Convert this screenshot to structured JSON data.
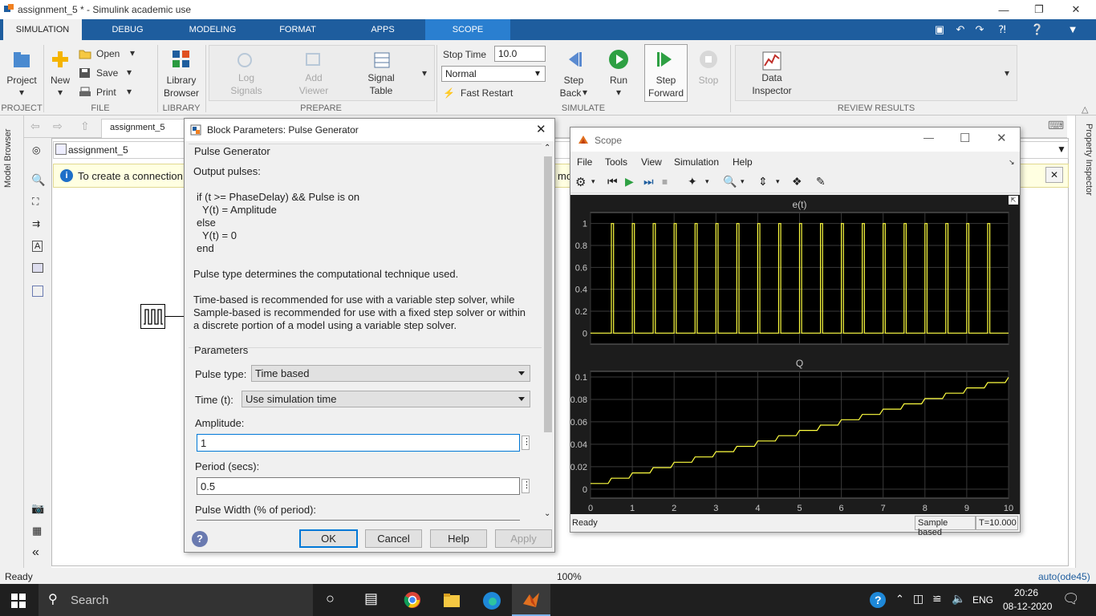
{
  "window": {
    "title": "assignment_5 * - Simulink academic use"
  },
  "tabs": [
    "SIMULATION",
    "DEBUG",
    "MODELING",
    "FORMAT",
    "APPS",
    "SCOPE"
  ],
  "ribbon": {
    "project": "Project",
    "new": "New",
    "open": "Open",
    "save": "Save",
    "print": "Print",
    "library_line1": "Library",
    "library_line2": "Browser",
    "log_line1": "Log",
    "log_line2": "Signals",
    "add_line1": "Add",
    "add_line2": "Viewer",
    "signal_line1": "Signal",
    "signal_line2": "Table",
    "stop_time_label": "Stop Time",
    "stop_time_value": "10.0",
    "mode": "Normal",
    "fast_restart": "Fast Restart",
    "step_back_line1": "Step",
    "step_back_line2": "Back",
    "run": "Run",
    "step_forward_line1": "Step",
    "step_forward_line2": "Forward",
    "stop": "Stop",
    "data_line1": "Data",
    "data_line2": "Inspector",
    "sections": {
      "project": "PROJECT",
      "file": "FILE",
      "library": "LIBRARY",
      "prepare": "PREPARE",
      "simulate": "SIMULATE",
      "review": "REVIEW RESULTS"
    }
  },
  "canvas": {
    "tab": "assignment_5",
    "breadcrumb": "assignment_5",
    "info": "To create a connection,",
    "info_tail": "mo",
    "model_browser": "Model Browser",
    "property_inspector": "Property Inspector"
  },
  "dialog": {
    "title": "Block Parameters: Pulse Generator",
    "group": "Pulse Generator",
    "desc_output": "Output pulses:",
    "code": [
      "if (t >= PhaseDelay) && Pulse is on",
      "  Y(t) = Amplitude",
      "else",
      "  Y(t) = 0",
      "end"
    ],
    "desc_type": "Pulse type determines the computational technique used.",
    "desc_solver": [
      "Time-based is recommended for use with a variable step solver, while",
      "Sample-based is recommended for use with a fixed step solver or within",
      "a discrete portion of a model using a variable step solver."
    ],
    "params_label": "Parameters",
    "pulse_type_label": "Pulse type:",
    "pulse_type_value": "Time based",
    "time_label": "Time (t):",
    "time_value": "Use simulation time",
    "amplitude_label": "Amplitude:",
    "amplitude_value": "1",
    "period_label": "Period (secs):",
    "period_value": "0.5",
    "pulse_width_label": "Pulse Width (% of period):",
    "buttons": {
      "ok": "OK",
      "cancel": "Cancel",
      "help": "Help",
      "apply": "Apply"
    }
  },
  "scope": {
    "title": "Scope",
    "menu": [
      "File",
      "Tools",
      "View",
      "Simulation",
      "Help"
    ],
    "status": "Ready",
    "sample_based": "Sample based",
    "time": "T=10.000"
  },
  "chart_data": [
    {
      "type": "line",
      "title": "e(t)",
      "x": [
        0,
        10
      ],
      "xlim": [
        0,
        10
      ],
      "ylim": [
        -0.1,
        1.1
      ],
      "yticks": [
        0,
        0.2,
        0.4,
        0.6,
        0.8,
        1
      ],
      "pulse_period": 0.5,
      "pulse_high_duration": 0.05,
      "pulse_start": 0.5,
      "amplitude": 1,
      "color": "#ffff40",
      "grid": true
    },
    {
      "type": "line",
      "title": "Q",
      "xlim": [
        0,
        10
      ],
      "ylim": [
        -0.008,
        0.105
      ],
      "yticks": [
        0,
        0.02,
        0.04,
        0.06,
        0.08,
        0.1
      ],
      "xticks": [
        0,
        1,
        2,
        3,
        4,
        5,
        6,
        7,
        8,
        9,
        10
      ],
      "step_period": 0.5,
      "start_value": 0.005,
      "end_value": 0.095,
      "color": "#ffff40",
      "grid": true
    }
  ],
  "statusbar": {
    "left": "Ready",
    "zoom": "100%",
    "solver": "auto(ode45)"
  },
  "taskbar": {
    "search": "Search",
    "lang": "ENG",
    "time": "20:26",
    "date": "08-12-2020"
  }
}
